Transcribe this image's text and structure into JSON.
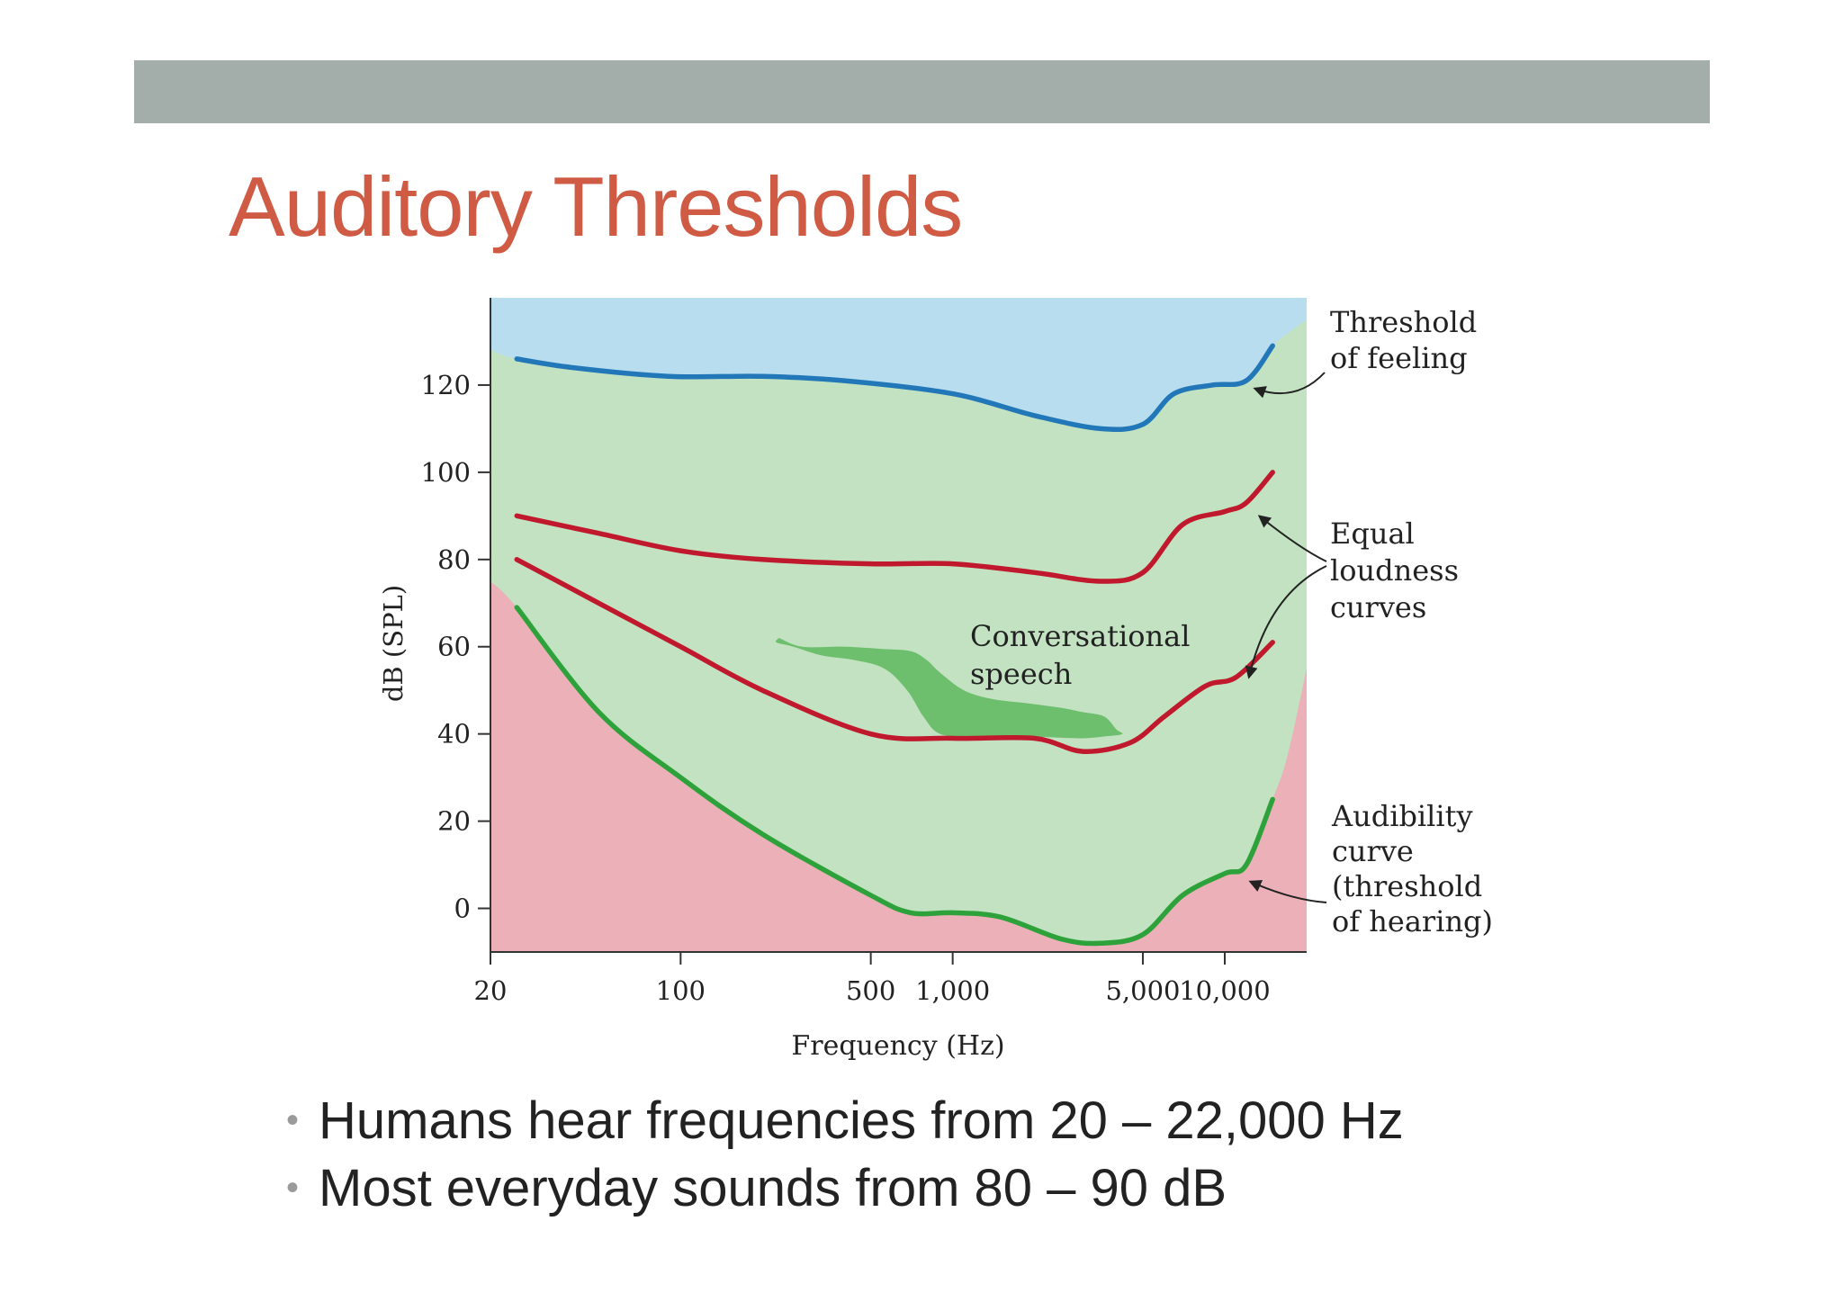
{
  "slide": {
    "title": "Auditory Thresholds",
    "bullets": [
      "Humans hear frequencies from 20 – 22,000 Hz",
      "Most everyday sounds from 80 – 90 dB"
    ]
  },
  "colors": {
    "bar": "#a3aeaa",
    "title": "#cf5b45",
    "sky": "#b8ddee",
    "green_region": "#c2e2c2",
    "pink_region": "#ecb0b9",
    "speech_region": "#6dbf6d",
    "feeling_curve": "#2277b8",
    "loudness_curve": "#c0182c",
    "audibility_curve": "#2ea23a"
  },
  "chart_data": {
    "type": "line",
    "x_scale": "log",
    "xlabel": "Frequency (Hz)",
    "ylabel": "dB (SPL)",
    "xlim": [
      20,
      20000
    ],
    "ylim": [
      -10,
      140
    ],
    "x_ticks": [
      {
        "value": 20,
        "label": "20"
      },
      {
        "value": 100,
        "label": "100"
      },
      {
        "value": 500,
        "label": "500"
      },
      {
        "value": 1000,
        "label": "1,000"
      },
      {
        "value": 5000,
        "label": "5,000"
      },
      {
        "value": 10000,
        "label": "10,000"
      }
    ],
    "y_ticks": [
      {
        "value": 0,
        "label": "0"
      },
      {
        "value": 20,
        "label": "20"
      },
      {
        "value": 40,
        "label": "40"
      },
      {
        "value": 60,
        "label": "60"
      },
      {
        "value": 80,
        "label": "80"
      },
      {
        "value": 100,
        "label": "100"
      },
      {
        "value": 120,
        "label": "120"
      }
    ],
    "series": [
      {
        "key": "feeling",
        "x": [
          25,
          40,
          90,
          200,
          400,
          1000,
          2000,
          3500,
          5000,
          6500,
          9000,
          12000,
          15000
        ],
        "y": [
          126,
          124,
          122,
          122,
          121,
          118,
          113,
          110,
          111,
          118,
          120,
          121,
          129
        ]
      },
      {
        "key": "loudness_upper",
        "x": [
          25,
          50,
          100,
          200,
          500,
          1000,
          2000,
          3500,
          5000,
          7000,
          10000,
          12000,
          15000
        ],
        "y": [
          90,
          86,
          82,
          80,
          79,
          79,
          77,
          75,
          77,
          88,
          91,
          93,
          100
        ]
      },
      {
        "key": "loudness_lower",
        "x": [
          25,
          50,
          100,
          200,
          500,
          1000,
          2000,
          3000,
          4500,
          6000,
          8500,
          11000,
          15000
        ],
        "y": [
          80,
          70,
          60,
          50,
          40,
          39,
          39,
          36,
          38,
          44,
          51,
          53,
          61
        ]
      },
      {
        "key": "audibility",
        "x": [
          25,
          50,
          100,
          200,
          500,
          700,
          1000,
          1500,
          2500,
          3500,
          5000,
          7000,
          10000,
          12000,
          15000
        ],
        "y": [
          69,
          45,
          30,
          17,
          3,
          -1,
          -1,
          -2,
          -7,
          -8,
          -6,
          3,
          8,
          10,
          25
        ]
      }
    ],
    "regions": {
      "feeling_boundary": {
        "x": [
          20,
          25,
          40,
          90,
          200,
          400,
          1000,
          2000,
          3500,
          5000,
          6500,
          9000,
          12000,
          15000,
          20000
        ],
        "y": [
          128,
          126,
          124,
          122,
          122,
          121,
          118,
          113,
          110,
          111,
          118,
          120,
          121,
          129,
          135
        ]
      },
      "audibility_boundary": {
        "x": [
          20,
          25,
          50,
          100,
          200,
          500,
          700,
          1000,
          1500,
          2500,
          3500,
          5000,
          7000,
          10000,
          12000,
          15000,
          17000,
          20000
        ],
        "y": [
          75,
          69,
          45,
          30,
          17,
          3,
          -1,
          -1,
          -2,
          -7,
          -8,
          -6,
          3,
          8,
          10,
          25,
          35,
          55
        ]
      },
      "speech": {
        "x": [
          230,
          280,
          400,
          550,
          700,
          800,
          900,
          1100,
          1400,
          1900,
          2500,
          3000,
          3600,
          4000,
          4200,
          3700,
          2900,
          1800,
          1200,
          900,
          780,
          680,
          560,
          430,
          330,
          260,
          225
        ],
        "y": [
          62,
          60,
          60,
          59.5,
          59,
          57,
          54,
          50,
          48,
          47,
          46,
          45,
          44,
          41,
          40,
          39.5,
          39,
          39.5,
          39.5,
          40,
          44,
          50,
          55,
          57,
          58,
          60,
          61
        ]
      }
    },
    "annotations": [
      {
        "key": "feeling",
        "lines": [
          "Threshold",
          "of feeling"
        ]
      },
      {
        "key": "loudness",
        "lines": [
          "Equal",
          "loudness",
          "curves"
        ]
      },
      {
        "key": "audibility",
        "lines": [
          "Audibility",
          "curve",
          "(threshold",
          "of hearing)"
        ]
      },
      {
        "key": "speech",
        "lines": [
          "Conversational",
          "speech"
        ]
      }
    ]
  }
}
